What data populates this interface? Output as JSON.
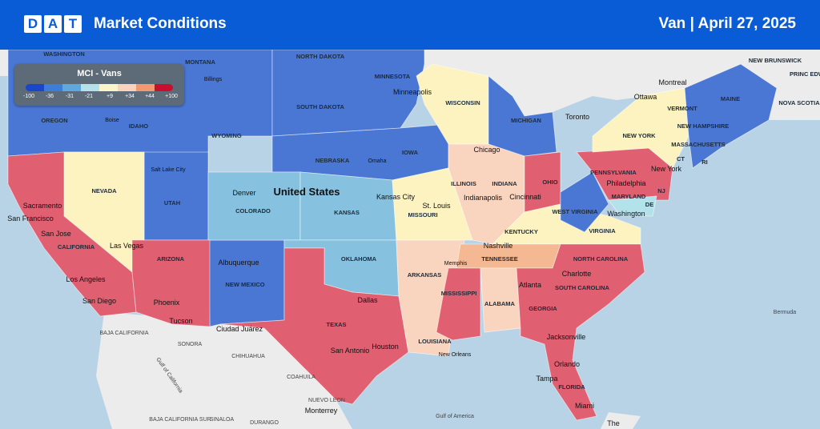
{
  "header": {
    "logo_letters": [
      "D",
      "A",
      "T"
    ],
    "title": "Market Conditions",
    "equipment": "Van",
    "separator": "|",
    "date": "April 27, 2025"
  },
  "legend": {
    "title": "MCI - Vans",
    "ticks": [
      "-100",
      "-36",
      "-31",
      "-21",
      "+9",
      "+34",
      "+44",
      "+100"
    ],
    "colors": [
      "#1a47c9",
      "#3b7dd8",
      "#5fa7df",
      "#b3e2ea",
      "#fbf4c8",
      "#fbd2bc",
      "#f3996f",
      "#c8102e"
    ]
  },
  "colors": {
    "header_bg": "#0a5bd6",
    "deep_blue": "#4a77d4",
    "light_blue": "#86c2df",
    "yellow": "#fcf3c0",
    "peach": "#f9d5c0",
    "red": "#e06072",
    "ocean": "#b9d3e6",
    "land": "#ececec"
  },
  "map": {
    "country_label": "United States",
    "states": {
      "washington": "WASHINGTON",
      "oregon": "OREGON",
      "idaho": "IDAHO",
      "montana": "MONTANA",
      "wyoming": "WYOMING",
      "nevada": "NEVADA",
      "utah": "UTAH",
      "colorado": "COLORADO",
      "california": "CALIFORNIA",
      "arizona": "ARIZONA",
      "new_mexico": "NEW MEXICO",
      "north_dakota": "NORTH DAKOTA",
      "south_dakota": "SOUTH DAKOTA",
      "nebraska": "NEBRASKA",
      "kansas": "KANSAS",
      "oklahoma": "OKLAHOMA",
      "texas": "TEXAS",
      "minnesota": "MINNESOTA",
      "iowa": "IOWA",
      "missouri": "MISSOURI",
      "arkansas": "ARKANSAS",
      "louisiana": "LOUISIANA",
      "wisconsin": "WISCONSIN",
      "illinois": "ILLINOIS",
      "michigan": "MICHIGAN",
      "indiana": "INDIANA",
      "ohio": "OHIO",
      "kentucky": "KENTUCKY",
      "tennessee": "TENNESSEE",
      "mississippi": "MISSISSIPPI",
      "alabama": "ALABAMA",
      "georgia": "GEORGIA",
      "florida": "FLORIDA",
      "south_carolina": "SOUTH CAROLINA",
      "north_carolina": "NORTH CAROLINA",
      "virginia": "VIRGINIA",
      "west_virginia": "WEST VIRGINIA",
      "pennsylvania": "PENNSYLVANIA",
      "new_york": "NEW YORK",
      "maryland": "MARYLAND",
      "de": "DE",
      "nj": "NJ",
      "ct": "CT",
      "ri": "RI",
      "massachusetts": "MASSACHUSETTS",
      "vermont": "VERMONT",
      "new_hampshire": "NEW HAMPSHIRE",
      "maine": "MAINE"
    },
    "cities": {
      "boise": "Boise",
      "billings": "Billings",
      "salt_lake_city": "Salt Lake City",
      "denver": "Denver",
      "sacramento": "Sacramento",
      "san_francisco": "San Francisco",
      "san_jose": "San Jose",
      "las_vegas": "Las Vegas",
      "los_angeles": "Los Angeles",
      "san_diego": "San Diego",
      "phoenix": "Phoenix",
      "tucson": "Tucson",
      "albuquerque": "Albuquerque",
      "ciudad_juarez": "Ciudad Juárez",
      "dallas": "Dallas",
      "san_antonio": "San Antonio",
      "houston": "Houston",
      "omaha": "Omaha",
      "kansas_city": "Kansas City",
      "st_louis": "St. Louis",
      "memphis": "Memphis",
      "new_orleans": "New Orleans",
      "minneapolis": "Minneapolis",
      "chicago": "Chicago",
      "indianapolis": "Indianapolis",
      "cincinnati": "Cincinnati",
      "nashville": "Nashville",
      "atlanta": "Atlanta",
      "charlotte": "Charlotte",
      "jacksonville": "Jacksonville",
      "orlando": "Orlando",
      "tampa": "Tampa",
      "miami": "Miami",
      "washington": "Washington",
      "philadelphia": "Philadelphia",
      "new_york": "New York",
      "toronto": "Toronto",
      "ottawa": "Ottawa",
      "montreal": "Montreal"
    },
    "other": {
      "new_brunswick": "NEW BRUNSWICK",
      "prince_edward": "PRINC EDWA",
      "nova_scotia": "NOVA SCOTIA",
      "baja_california": "BAJA CALIFORNIA",
      "baja_california_sur": "BAJA CALIFORNIA SUR",
      "sonora": "SONORA",
      "chihuahua": "CHIHUAHUA",
      "coahuila": "COAHUILA",
      "nuevo_leon": "NUEVO LEON",
      "sinaloa": "SINALOA",
      "durango": "DURANGO",
      "monterrey": "Monterrey",
      "gulf_california": "Gulf of California",
      "gulf_mexico": "Gulf of America",
      "bermuda": "Bermuda",
      "the": "The"
    }
  }
}
